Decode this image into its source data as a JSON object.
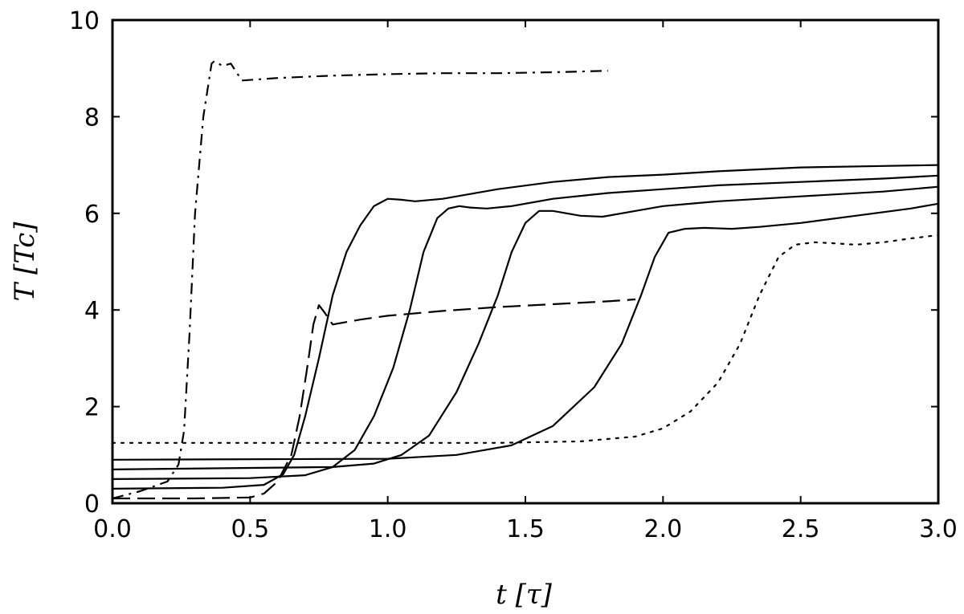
{
  "chart_data": {
    "type": "line",
    "title": "",
    "xlabel": "t [τ]",
    "ylabel": "T [Tc]",
    "xlim": [
      0.0,
      3.0
    ],
    "ylim": [
      0,
      10
    ],
    "x_ticks": [
      "0.0",
      "0.5",
      "1.0",
      "1.5",
      "2.0",
      "2.5",
      "3.0"
    ],
    "y_ticks": [
      "0",
      "2",
      "4",
      "6",
      "8",
      "10"
    ],
    "x_tick_values": [
      0.0,
      0.5,
      1.0,
      1.5,
      2.0,
      2.5,
      3.0
    ],
    "y_tick_values": [
      0,
      2,
      4,
      6,
      8,
      10
    ],
    "grid": false,
    "series": [
      {
        "name": "dash-dot",
        "style": "dashdot",
        "color": "#000000",
        "points": [
          [
            0.0,
            0.1
          ],
          [
            0.1,
            0.25
          ],
          [
            0.2,
            0.45
          ],
          [
            0.24,
            0.8
          ],
          [
            0.26,
            1.5
          ],
          [
            0.28,
            3.5
          ],
          [
            0.3,
            6.0
          ],
          [
            0.33,
            8.0
          ],
          [
            0.36,
            9.1
          ],
          [
            0.37,
            9.15
          ],
          [
            0.4,
            9.05
          ],
          [
            0.43,
            9.1
          ],
          [
            0.47,
            8.75
          ],
          [
            0.6,
            8.8
          ],
          [
            0.8,
            8.85
          ],
          [
            1.0,
            8.88
          ],
          [
            1.2,
            8.9
          ],
          [
            1.4,
            8.9
          ],
          [
            1.6,
            8.92
          ],
          [
            1.8,
            8.95
          ]
        ]
      },
      {
        "name": "long-dash",
        "style": "dashed",
        "color": "#000000",
        "points": [
          [
            0.0,
            0.1
          ],
          [
            0.3,
            0.1
          ],
          [
            0.5,
            0.12
          ],
          [
            0.55,
            0.2
          ],
          [
            0.6,
            0.45
          ],
          [
            0.65,
            1.0
          ],
          [
            0.68,
            1.8
          ],
          [
            0.71,
            2.9
          ],
          [
            0.73,
            3.7
          ],
          [
            0.75,
            4.1
          ],
          [
            0.77,
            3.95
          ],
          [
            0.8,
            3.7
          ],
          [
            0.9,
            3.8
          ],
          [
            1.0,
            3.88
          ],
          [
            1.2,
            3.98
          ],
          [
            1.4,
            4.06
          ],
          [
            1.6,
            4.12
          ],
          [
            1.8,
            4.18
          ],
          [
            1.9,
            4.22
          ]
        ]
      },
      {
        "name": "solid-1",
        "style": "solid",
        "color": "#000000",
        "points": [
          [
            0.0,
            0.3
          ],
          [
            0.4,
            0.32
          ],
          [
            0.55,
            0.38
          ],
          [
            0.62,
            0.6
          ],
          [
            0.66,
            1.0
          ],
          [
            0.7,
            1.8
          ],
          [
            0.75,
            3.0
          ],
          [
            0.8,
            4.3
          ],
          [
            0.85,
            5.2
          ],
          [
            0.9,
            5.75
          ],
          [
            0.95,
            6.15
          ],
          [
            1.0,
            6.3
          ],
          [
            1.05,
            6.28
          ],
          [
            1.1,
            6.25
          ],
          [
            1.2,
            6.3
          ],
          [
            1.4,
            6.5
          ],
          [
            1.6,
            6.65
          ],
          [
            1.8,
            6.75
          ],
          [
            2.0,
            6.8
          ],
          [
            2.2,
            6.87
          ],
          [
            2.5,
            6.95
          ],
          [
            2.8,
            6.98
          ],
          [
            3.0,
            7.0
          ]
        ]
      },
      {
        "name": "solid-2",
        "style": "solid",
        "color": "#000000",
        "points": [
          [
            0.0,
            0.5
          ],
          [
            0.5,
            0.52
          ],
          [
            0.7,
            0.58
          ],
          [
            0.8,
            0.75
          ],
          [
            0.88,
            1.1
          ],
          [
            0.95,
            1.8
          ],
          [
            1.02,
            2.8
          ],
          [
            1.08,
            4.0
          ],
          [
            1.13,
            5.2
          ],
          [
            1.18,
            5.9
          ],
          [
            1.22,
            6.1
          ],
          [
            1.26,
            6.15
          ],
          [
            1.3,
            6.12
          ],
          [
            1.36,
            6.1
          ],
          [
            1.45,
            6.15
          ],
          [
            1.6,
            6.3
          ],
          [
            1.8,
            6.42
          ],
          [
            2.0,
            6.5
          ],
          [
            2.2,
            6.58
          ],
          [
            2.5,
            6.65
          ],
          [
            2.8,
            6.72
          ],
          [
            3.0,
            6.78
          ]
        ]
      },
      {
        "name": "solid-3",
        "style": "solid",
        "color": "#000000",
        "points": [
          [
            0.0,
            0.7
          ],
          [
            0.8,
            0.75
          ],
          [
            0.95,
            0.82
          ],
          [
            1.05,
            1.0
          ],
          [
            1.15,
            1.4
          ],
          [
            1.25,
            2.3
          ],
          [
            1.33,
            3.3
          ],
          [
            1.4,
            4.3
          ],
          [
            1.45,
            5.2
          ],
          [
            1.5,
            5.8
          ],
          [
            1.55,
            6.05
          ],
          [
            1.6,
            6.05
          ],
          [
            1.65,
            6.0
          ],
          [
            1.7,
            5.95
          ],
          [
            1.78,
            5.93
          ],
          [
            1.85,
            6.0
          ],
          [
            2.0,
            6.15
          ],
          [
            2.2,
            6.25
          ],
          [
            2.5,
            6.35
          ],
          [
            2.8,
            6.45
          ],
          [
            3.0,
            6.55
          ]
        ]
      },
      {
        "name": "solid-4",
        "style": "solid",
        "color": "#000000",
        "points": [
          [
            0.0,
            0.9
          ],
          [
            1.0,
            0.92
          ],
          [
            1.25,
            1.0
          ],
          [
            1.45,
            1.2
          ],
          [
            1.6,
            1.6
          ],
          [
            1.75,
            2.4
          ],
          [
            1.85,
            3.3
          ],
          [
            1.92,
            4.3
          ],
          [
            1.97,
            5.1
          ],
          [
            2.02,
            5.6
          ],
          [
            2.08,
            5.68
          ],
          [
            2.15,
            5.7
          ],
          [
            2.25,
            5.68
          ],
          [
            2.35,
            5.72
          ],
          [
            2.5,
            5.8
          ],
          [
            2.7,
            5.95
          ],
          [
            2.9,
            6.1
          ],
          [
            3.0,
            6.2
          ]
        ]
      },
      {
        "name": "dotted",
        "style": "dotted",
        "color": "#000000",
        "points": [
          [
            0.0,
            1.25
          ],
          [
            1.4,
            1.25
          ],
          [
            1.7,
            1.28
          ],
          [
            1.9,
            1.38
          ],
          [
            2.0,
            1.55
          ],
          [
            2.1,
            1.9
          ],
          [
            2.2,
            2.5
          ],
          [
            2.28,
            3.3
          ],
          [
            2.35,
            4.3
          ],
          [
            2.42,
            5.1
          ],
          [
            2.48,
            5.35
          ],
          [
            2.55,
            5.4
          ],
          [
            2.62,
            5.38
          ],
          [
            2.7,
            5.35
          ],
          [
            2.8,
            5.4
          ],
          [
            2.9,
            5.48
          ],
          [
            3.0,
            5.55
          ]
        ]
      }
    ]
  }
}
